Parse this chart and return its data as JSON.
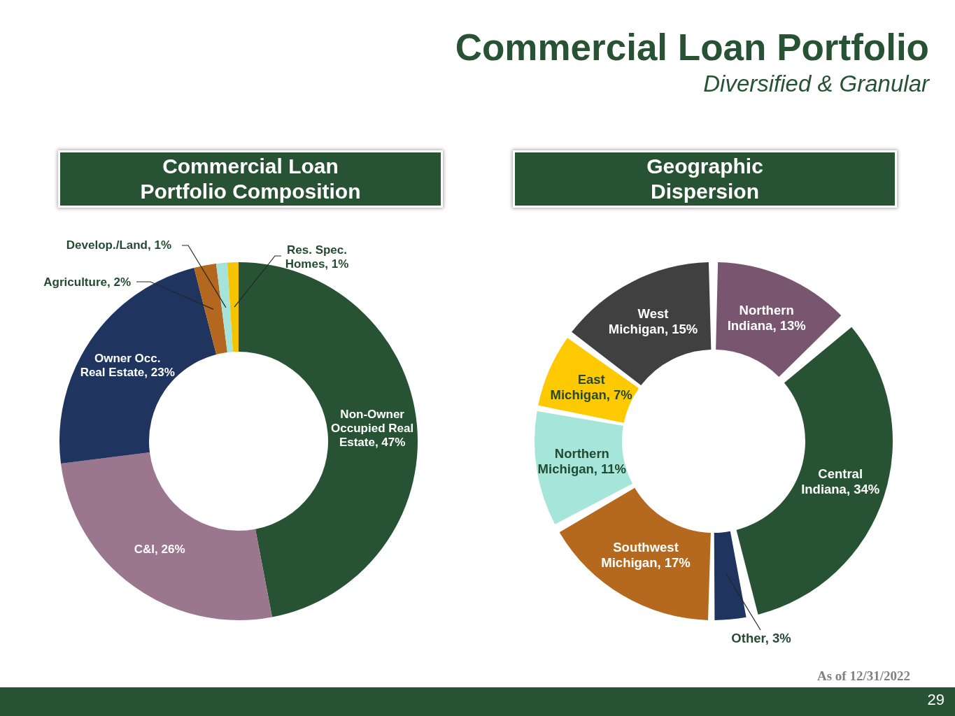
{
  "chart_data": [
    {
      "type": "other",
      "title": "Commercial Loan Portfolio",
      "subtitle": "Diversified & Granular",
      "annotations": [
        "As of 12/31/2022",
        "29"
      ]
    },
    {
      "type": "donut",
      "title": "Commercial Loan Portfolio Composition",
      "categories": [
        "Non-Owner Occupied Real Estate",
        "C&I",
        "Owner Occ. Real Estate",
        "Agriculture",
        "Develop./Land",
        "Res. Spec. Homes"
      ],
      "values": [
        47,
        26,
        23,
        2,
        1,
        1
      ],
      "colors": [
        "#285234",
        "#9b768f",
        "#1f3560",
        "#b4681f",
        "#a6e3da",
        "#f5c400"
      ],
      "value_labels": [
        "47%",
        "26%",
        "23%",
        "2%",
        "1%",
        "1%"
      ]
    },
    {
      "type": "donut",
      "title": "Geographic Dispersion",
      "categories": [
        "Northern Indiana",
        "Central Indiana",
        "Other",
        "Southwest Michigan",
        "Northern Michigan",
        "East Michigan",
        "West Michigan"
      ],
      "values": [
        13,
        34,
        3,
        17,
        11,
        7,
        15
      ],
      "colors": [
        "#78566f",
        "#285234",
        "#1f3560",
        "#b4691f",
        "#a6e5da",
        "#ffc900",
        "#404040"
      ],
      "value_labels": [
        "13%",
        "34%",
        "3%",
        "17%",
        "11%",
        "7%",
        "15%"
      ]
    }
  ]
}
